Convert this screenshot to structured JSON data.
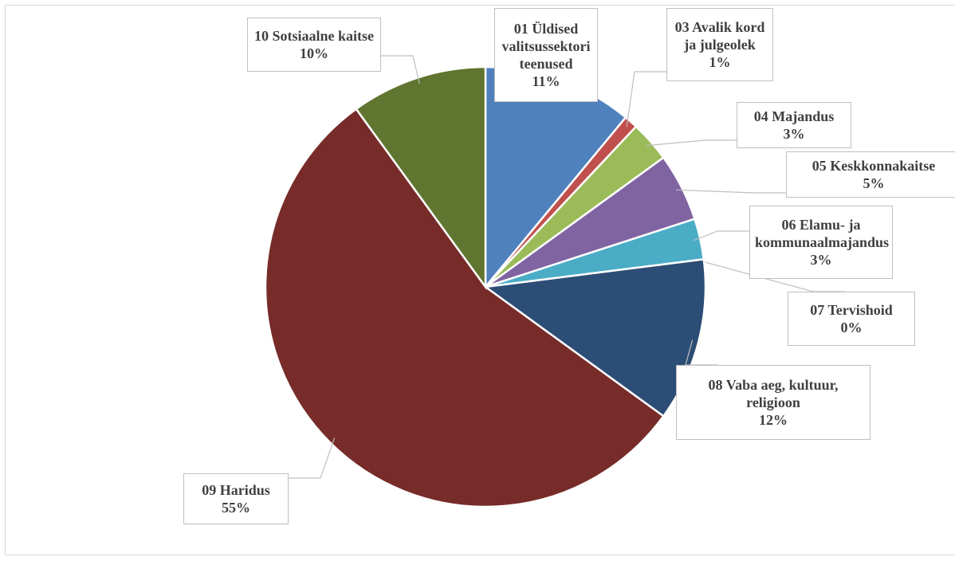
{
  "chart_data": {
    "type": "pie",
    "categories": [
      "01 Üldised valitsussektori teenused",
      "03 Avalik kord ja julgeolek",
      "04 Majandus",
      "05 Keskkonnakaitse",
      "06 Elamu- ja kommunaalmajandus",
      "07 Tervishoid",
      "08 Vaba aeg, kultuur, religioon",
      "09 Haridus",
      "10 Sotsiaalne kaitse"
    ],
    "values": [
      11,
      1,
      3,
      5,
      3,
      0,
      12,
      55,
      10
    ],
    "value_labels": [
      "11%",
      "1%",
      "3%",
      "5%",
      "3%",
      "0%",
      "12%",
      "55%",
      "10%"
    ],
    "colors": [
      "#4f81bd",
      "#c0504d",
      "#9bbb59",
      "#8064a2",
      "#4bacc6",
      "#f79646",
      "#2c4d75",
      "#772c2a",
      "#5f7530"
    ]
  }
}
